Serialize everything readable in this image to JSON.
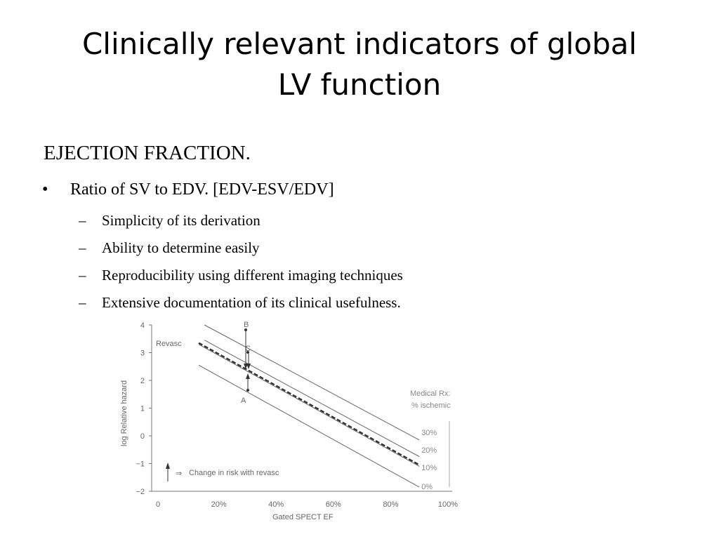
{
  "slide": {
    "title_line1": "Clinically relevant indicators of global",
    "title_line2": "LV function",
    "heading": "EJECTION FRACTION.",
    "bullet_marker": "•",
    "bullet": "Ratio of SV to EDV. [EDV-ESV/EDV]",
    "sub_marker": "–",
    "sub_bullets": [
      "Simplicity of its derivation",
      "Ability to determine easily",
      "Reproducibility using different imaging techniques",
      "Extensive documentation of its clinical usefulness."
    ]
  },
  "chart_data": {
    "type": "line",
    "xlabel": "Gated SPECT EF",
    "ylabel": "log Relative hazard",
    "x_ticks": [
      "0",
      "20%",
      "40%",
      "60%",
      "80%",
      "100%"
    ],
    "y_ticks": [
      "4",
      "3",
      "2",
      "1",
      "0",
      "−1",
      "−2"
    ],
    "xlim": [
      0,
      100
    ],
    "ylim": [
      -2,
      4
    ],
    "grid": false,
    "series": [
      {
        "name": "Revasc",
        "style": "dashed",
        "x": [
          13,
          90
        ],
        "y": [
          3.35,
          -1.05
        ]
      },
      {
        "name": "30%",
        "style": "solid",
        "x": [
          15,
          90
        ],
        "y": [
          4.0,
          -0.15
        ]
      },
      {
        "name": "20%",
        "style": "solid",
        "x": [
          15,
          90
        ],
        "y": [
          3.45,
          -0.75
        ]
      },
      {
        "name": "10%",
        "style": "solid",
        "x": [
          13,
          90
        ],
        "y": [
          3.3,
          -1.1
        ]
      },
      {
        "name": "0%",
        "style": "solid",
        "x": [
          13,
          90
        ],
        "y": [
          2.55,
          -1.85
        ]
      }
    ],
    "annotations": {
      "revasc_label": "Revasc",
      "medical_rx_label": "Medical Rx:",
      "ischemic_label": "% ischemic",
      "point_b": "B",
      "point_c": "C",
      "point_a": "A",
      "legend_arrow_symbol": "⇒",
      "legend_text": "Change in risk with revasc"
    }
  }
}
